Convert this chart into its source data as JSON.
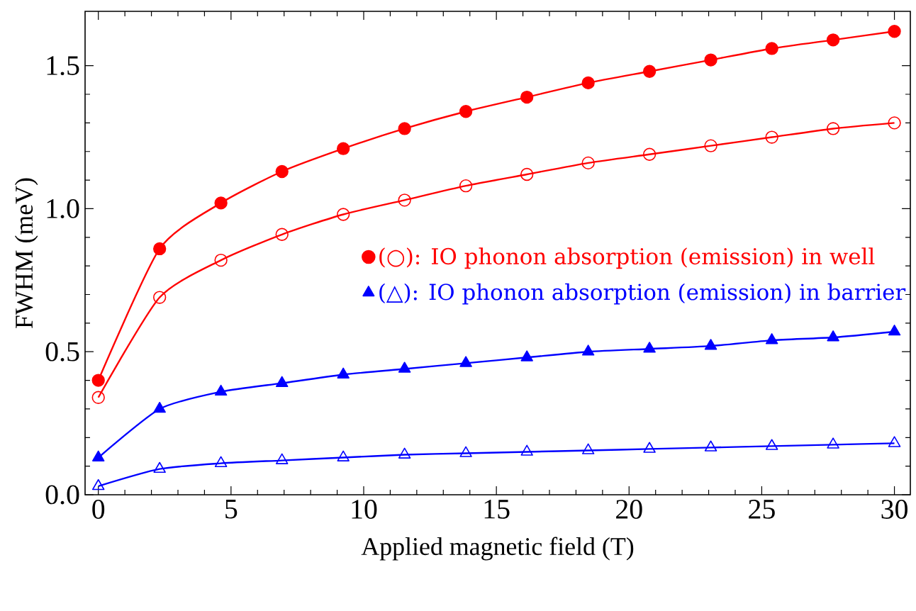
{
  "chart_data": {
    "type": "line",
    "xlabel": "Applied magnetic field (T)",
    "ylabel": "FWHM (meV)",
    "x": [
      0,
      2.31,
      4.62,
      6.92,
      9.23,
      11.54,
      13.85,
      16.15,
      18.46,
      20.77,
      23.08,
      25.38,
      27.69,
      30
    ],
    "series": [
      {
        "name": "(○): IO phonon absorption (emission) in well",
        "color": "#ff0000",
        "marker": "circle",
        "values": [
          0.4,
          0.86,
          1.02,
          1.13,
          1.21,
          1.28,
          1.34,
          1.39,
          1.44,
          1.48,
          1.52,
          1.56,
          1.59,
          1.62
        ]
      },
      {
        "color": "#ff0000",
        "marker": "circle-open",
        "values": [
          0.34,
          0.69,
          0.82,
          0.91,
          0.98,
          1.03,
          1.08,
          1.12,
          1.16,
          1.19,
          1.22,
          1.25,
          1.28,
          1.3
        ]
      },
      {
        "name": "(△): IO phonon absorption (emission) in barrier",
        "color": "#0000ff",
        "marker": "triangle",
        "values": [
          0.13,
          0.3,
          0.36,
          0.39,
          0.42,
          0.44,
          0.46,
          0.48,
          0.5,
          0.51,
          0.52,
          0.54,
          0.55,
          0.57
        ]
      },
      {
        "color": "#0000ff",
        "marker": "triangle-open",
        "values": [
          0.03,
          0.09,
          0.11,
          0.12,
          0.13,
          0.14,
          0.145,
          0.15,
          0.155,
          0.16,
          0.165,
          0.17,
          0.175,
          0.18
        ]
      }
    ],
    "xlim": [
      -0.5,
      30.6
    ],
    "ylim": [
      0,
      1.69
    ],
    "xticks": [
      0,
      5,
      10,
      15,
      20,
      25,
      30
    ],
    "yticks": [
      {
        "value": 0,
        "label": "0.0"
      },
      {
        "value": 0.5,
        "label": "0.5"
      },
      {
        "value": 1,
        "label": "1.0"
      },
      {
        "value": 1.5,
        "label": "1.5"
      }
    ],
    "grid": false,
    "legend": "right",
    "line_style": "solid"
  }
}
